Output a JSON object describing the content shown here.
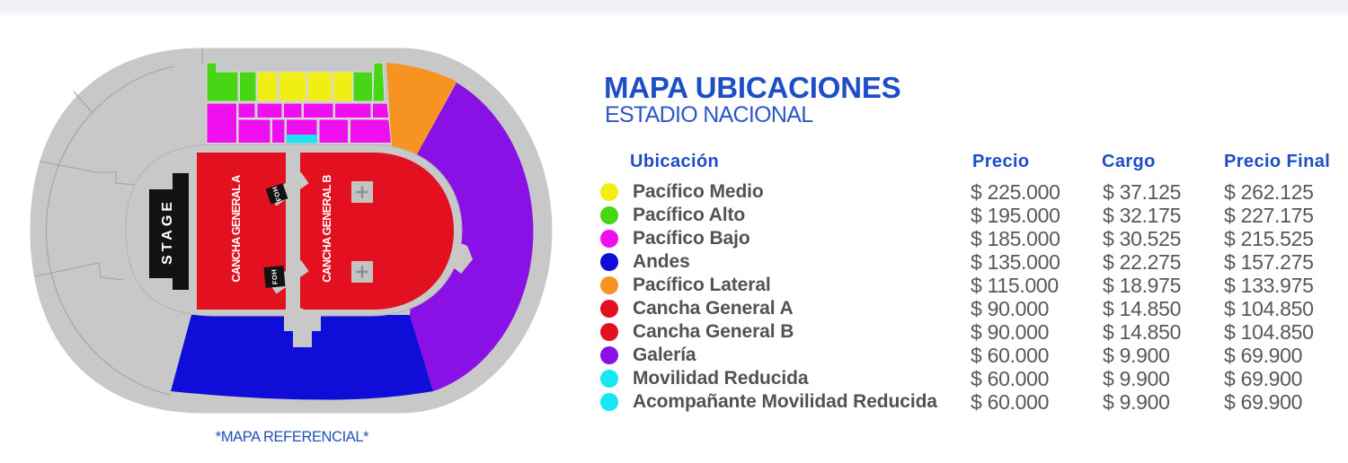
{
  "title": "MAPA UBICACIONES",
  "subtitle": "ESTADIO NACIONAL",
  "map_note": "*MAPA REFERENCIAL*",
  "map_labels": {
    "stage": "STAGE",
    "cancha_a": "CANCHA GENERAL A",
    "cancha_b": "CANCHA GENERAL B",
    "foh": "FOH"
  },
  "colors": {
    "base_gray": "#c8c8c8",
    "line_gray": "#a0a0a0",
    "separator": "#dedede",
    "red": "#e31020",
    "green": "#46d616",
    "yellow": "#f1ee15",
    "magenta": "#ef0fee",
    "blue": "#100dd8",
    "orange": "#f79421",
    "purple": "#8a11e6",
    "cyan_map": "#1fe3ef",
    "stage_black": "#121212",
    "plus_box": "#c3c3c3",
    "plus_cross": "#8e8e8e",
    "text_blue": "#1e4dc8",
    "text_gray": "#58585c"
  },
  "table": {
    "headers": {
      "ubicacion": "Ubicación",
      "precio": "Precio",
      "cargo": "Cargo",
      "precio_final": "Precio Final"
    },
    "rows": [
      {
        "color": "#f1ee15",
        "label": "Pacífico Medio",
        "precio": "$ 225.000",
        "cargo": "$ 37.125",
        "precio_final": "$ 262.125"
      },
      {
        "color": "#46d616",
        "label": "Pacífico Alto",
        "precio": "$ 195.000",
        "cargo": "$ 32.175",
        "precio_final": "$ 227.175"
      },
      {
        "color": "#ef0fee",
        "label": "Pacífico Bajo",
        "precio": "$ 185.000",
        "cargo": "$ 30.525",
        "precio_final": "$ 215.525"
      },
      {
        "color": "#100dd8",
        "label": "Andes",
        "precio": "$ 135.000",
        "cargo": "$ 22.275",
        "precio_final": "$ 157.275"
      },
      {
        "color": "#f79421",
        "label": "Pacífico Lateral",
        "precio": "$ 115.000",
        "cargo": "$ 18.975",
        "precio_final": "$ 133.975"
      },
      {
        "color": "#e31020",
        "label": "Cancha General A",
        "precio": "$ 90.000",
        "cargo": "$ 14.850",
        "precio_final": "$ 104.850"
      },
      {
        "color": "#e31020",
        "label": "Cancha General B",
        "precio": "$ 90.000",
        "cargo": "$ 14.850",
        "precio_final": "$ 104.850"
      },
      {
        "color": "#8a11e6",
        "label": "Galería",
        "precio": "$ 60.000",
        "cargo": "$ 9.900",
        "precio_final": "$ 69.900"
      },
      {
        "color": "#16e7f0",
        "label": "Movilidad Reducida",
        "precio": "$ 60.000",
        "cargo": "$ 9.900",
        "precio_final": "$ 69.900"
      },
      {
        "color": "#16e7f0",
        "label": "Acompañante Movilidad Reducida",
        "precio": "$ 60.000",
        "cargo": "$ 9.900",
        "precio_final": "$ 69.900"
      }
    ]
  }
}
